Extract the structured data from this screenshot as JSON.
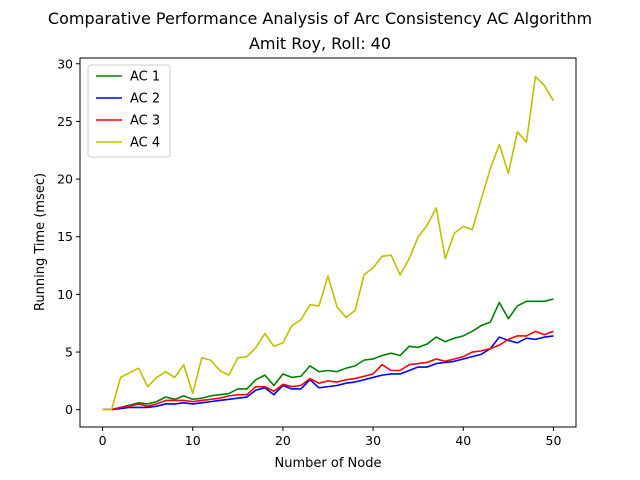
{
  "chart_data": {
    "type": "line",
    "title": "Comparative Performance Analysis of Arc Consistency AC Algorithm",
    "subtitle": "Amit Roy, Roll: 40",
    "xlabel": "Number of Node",
    "ylabel": "Running Time (msec)",
    "xlim": [
      -2.5,
      52.5
    ],
    "ylim": [
      -1.5,
      30.5
    ],
    "xticks": [
      0,
      10,
      20,
      30,
      40,
      50
    ],
    "yticks": [
      0,
      5,
      10,
      15,
      20,
      25,
      30
    ],
    "grid": false,
    "legend_position": "top-left",
    "x": [
      0,
      1,
      2,
      3,
      4,
      5,
      6,
      7,
      8,
      9,
      10,
      11,
      12,
      13,
      14,
      15,
      16,
      17,
      18,
      19,
      20,
      21,
      22,
      23,
      24,
      25,
      26,
      27,
      28,
      29,
      30,
      31,
      32,
      33,
      34,
      35,
      36,
      37,
      38,
      39,
      40,
      41,
      42,
      43,
      44,
      45,
      46,
      47,
      48,
      49,
      50
    ],
    "series": [
      {
        "name": "AC 1",
        "color": "#008000",
        "values": [
          0,
          0,
          0.2,
          0.4,
          0.6,
          0.5,
          0.7,
          1.1,
          0.9,
          1.2,
          0.9,
          1.0,
          1.2,
          1.3,
          1.4,
          1.8,
          1.8,
          2.6,
          3.0,
          2.1,
          3.1,
          2.8,
          2.9,
          3.8,
          3.3,
          3.4,
          3.3,
          3.6,
          3.8,
          4.3,
          4.4,
          4.7,
          4.9,
          4.7,
          5.5,
          5.4,
          5.7,
          6.3,
          5.9,
          6.2,
          6.4,
          6.8,
          7.3,
          7.6,
          9.3,
          7.9,
          9.0,
          9.4,
          9.4,
          9.4,
          9.6
        ]
      },
      {
        "name": "AC 2",
        "color": "#0000ff",
        "values": [
          0,
          0,
          0.1,
          0.2,
          0.2,
          0.2,
          0.3,
          0.5,
          0.5,
          0.6,
          0.5,
          0.6,
          0.7,
          0.8,
          0.9,
          1.0,
          1.1,
          1.7,
          1.9,
          1.3,
          2.1,
          1.8,
          1.8,
          2.6,
          1.9,
          2.0,
          2.1,
          2.3,
          2.4,
          2.6,
          2.8,
          3.0,
          3.1,
          3.1,
          3.4,
          3.7,
          3.7,
          4.0,
          4.1,
          4.2,
          4.4,
          4.6,
          4.8,
          5.3,
          6.3,
          6.0,
          5.8,
          6.2,
          6.1,
          6.3,
          6.4
        ]
      },
      {
        "name": "AC 3",
        "color": "#ff0000",
        "values": [
          0,
          0,
          0.2,
          0.3,
          0.5,
          0.3,
          0.5,
          0.8,
          0.8,
          0.8,
          0.7,
          0.8,
          0.9,
          1.0,
          1.2,
          1.3,
          1.3,
          2.0,
          2.0,
          1.6,
          2.2,
          2.0,
          2.1,
          2.7,
          2.3,
          2.5,
          2.4,
          2.6,
          2.7,
          2.9,
          3.1,
          3.9,
          3.4,
          3.4,
          3.9,
          4.0,
          4.1,
          4.4,
          4.2,
          4.4,
          4.6,
          5.0,
          5.1,
          5.3,
          5.6,
          6.1,
          6.4,
          6.4,
          6.8,
          6.5,
          6.8
        ]
      },
      {
        "name": "AC 4",
        "color": "#bfbf00",
        "values": [
          0,
          0,
          2.8,
          3.2,
          3.6,
          2.0,
          2.8,
          3.3,
          2.8,
          3.9,
          1.4,
          4.5,
          4.3,
          3.4,
          3.0,
          4.5,
          4.6,
          5.4,
          6.6,
          5.5,
          5.8,
          7.3,
          7.8,
          9.1,
          9.0,
          11.6,
          8.9,
          8.0,
          8.6,
          11.7,
          12.3,
          13.3,
          13.4,
          11.7,
          13.1,
          15.0,
          16.0,
          17.5,
          13.1,
          15.3,
          15.9,
          15.6,
          18.3,
          20.9,
          23.0,
          20.5,
          24.1,
          23.2,
          28.9,
          28.1,
          26.8
        ]
      }
    ]
  }
}
